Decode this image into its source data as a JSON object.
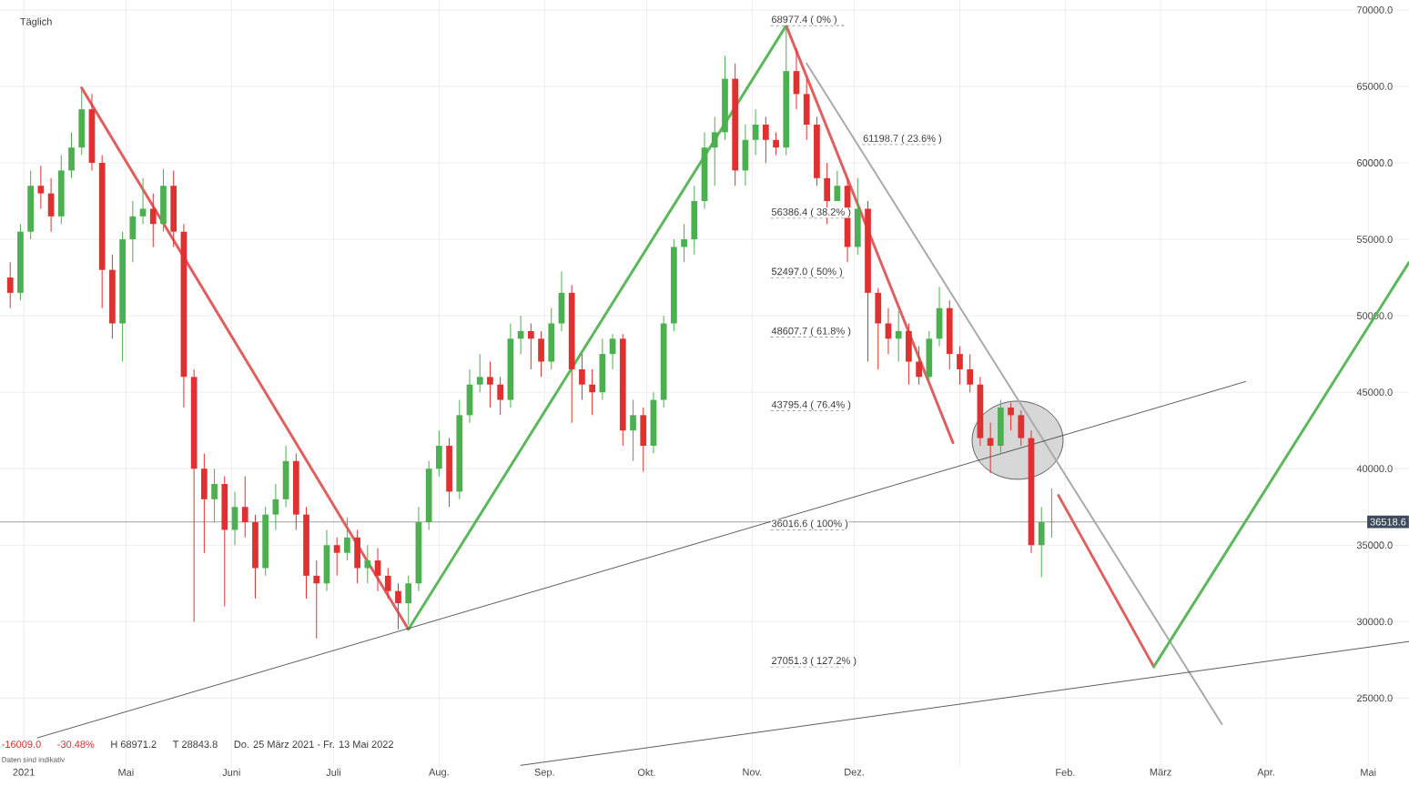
{
  "chart_data": {
    "type": "candlestick",
    "title": "Täglich",
    "x": [
      "2021-03-28",
      "2021-03-31",
      "2021-04-03",
      "2021-04-06",
      "2021-04-09",
      "2021-04-12",
      "2021-04-15",
      "2021-04-18",
      "2021-04-21",
      "2021-04-24",
      "2021-04-27",
      "2021-04-30",
      "2021-05-03",
      "2021-05-06",
      "2021-05-09",
      "2021-05-12",
      "2021-05-15",
      "2021-05-18",
      "2021-05-21",
      "2021-05-24",
      "2021-05-27",
      "2021-05-30",
      "2021-06-02",
      "2021-06-05",
      "2021-06-08",
      "2021-06-11",
      "2021-06-14",
      "2021-06-17",
      "2021-06-20",
      "2021-06-23",
      "2021-06-26",
      "2021-06-29",
      "2021-07-02",
      "2021-07-05",
      "2021-07-08",
      "2021-07-11",
      "2021-07-14",
      "2021-07-17",
      "2021-07-20",
      "2021-07-23",
      "2021-07-26",
      "2021-07-29",
      "2021-08-01",
      "2021-08-04",
      "2021-08-07",
      "2021-08-10",
      "2021-08-13",
      "2021-08-16",
      "2021-08-19",
      "2021-08-22",
      "2021-08-25",
      "2021-08-28",
      "2021-08-31",
      "2021-09-03",
      "2021-09-06",
      "2021-09-09",
      "2021-09-12",
      "2021-09-15",
      "2021-09-18",
      "2021-09-21",
      "2021-09-24",
      "2021-09-27",
      "2021-09-30",
      "2021-10-03",
      "2021-10-06",
      "2021-10-09",
      "2021-10-12",
      "2021-10-15",
      "2021-10-18",
      "2021-10-21",
      "2021-10-24",
      "2021-10-27",
      "2021-10-30",
      "2021-11-02",
      "2021-11-05",
      "2021-11-08",
      "2021-11-11",
      "2021-11-14",
      "2021-11-17",
      "2021-11-20",
      "2021-11-23",
      "2021-11-26",
      "2021-11-29",
      "2021-12-02",
      "2021-12-05",
      "2021-12-08",
      "2021-12-11",
      "2021-12-14",
      "2021-12-17",
      "2021-12-20",
      "2021-12-23",
      "2021-12-26",
      "2021-12-29",
      "2022-01-01",
      "2022-01-04",
      "2022-01-07",
      "2022-01-10",
      "2022-01-13",
      "2022-01-16",
      "2022-01-19",
      "2022-01-22",
      "2022-01-25",
      "2022-01-28"
    ],
    "ohlc": [
      [
        52500,
        53500,
        50500,
        51500
      ],
      [
        51500,
        56000,
        51000,
        55500
      ],
      [
        55500,
        59500,
        55000,
        58500
      ],
      [
        58500,
        59800,
        57000,
        58000
      ],
      [
        58000,
        59000,
        55500,
        56500
      ],
      [
        56500,
        60500,
        56000,
        59500
      ],
      [
        59500,
        62000,
        59000,
        61000
      ],
      [
        61000,
        64800,
        60500,
        63500
      ],
      [
        63500,
        64500,
        59500,
        60000
      ],
      [
        60000,
        60500,
        50500,
        53000
      ],
      [
        53000,
        54000,
        48500,
        49500
      ],
      [
        49500,
        55500,
        47000,
        55000
      ],
      [
        55000,
        57500,
        53500,
        56500
      ],
      [
        56500,
        59000,
        56000,
        57000
      ],
      [
        57000,
        58000,
        54500,
        56000
      ],
      [
        56000,
        59600,
        55500,
        58500
      ],
      [
        58500,
        59500,
        54500,
        55500
      ],
      [
        55500,
        56000,
        44000,
        46000
      ],
      [
        46000,
        46500,
        30000,
        40000
      ],
      [
        40000,
        41000,
        34500,
        38000
      ],
      [
        38000,
        40000,
        36500,
        39000
      ],
      [
        39000,
        39500,
        31000,
        36000
      ],
      [
        36000,
        38500,
        35000,
        37500
      ],
      [
        37500,
        39500,
        35500,
        36500
      ],
      [
        36500,
        37000,
        31500,
        33500
      ],
      [
        33500,
        37500,
        33000,
        37000
      ],
      [
        37000,
        39000,
        36000,
        38000
      ],
      [
        38000,
        41500,
        37500,
        40500
      ],
      [
        40500,
        41000,
        36000,
        37000
      ],
      [
        37000,
        37500,
        31500,
        33000
      ],
      [
        33000,
        34000,
        28900,
        32500
      ],
      [
        32500,
        36000,
        32000,
        35000
      ],
      [
        35000,
        35500,
        33000,
        34500
      ],
      [
        34500,
        36800,
        34000,
        35500
      ],
      [
        35500,
        36000,
        32500,
        33500
      ],
      [
        33500,
        35000,
        32500,
        34000
      ],
      [
        34000,
        34800,
        32000,
        33000
      ],
      [
        33000,
        33500,
        31500,
        32000
      ],
      [
        32000,
        32500,
        29500,
        31200
      ],
      [
        31200,
        33000,
        29800,
        32500
      ],
      [
        32500,
        37500,
        32000,
        36500
      ],
      [
        36500,
        40500,
        36000,
        40000
      ],
      [
        40000,
        42500,
        39500,
        41500
      ],
      [
        41500,
        42000,
        37500,
        38500
      ],
      [
        38500,
        44500,
        38000,
        43500
      ],
      [
        43500,
        46500,
        43000,
        45500
      ],
      [
        45500,
        47500,
        45000,
        46000
      ],
      [
        46000,
        47000,
        44000,
        45500
      ],
      [
        45500,
        46000,
        43500,
        44500
      ],
      [
        44500,
        49500,
        44000,
        48500
      ],
      [
        48500,
        50000,
        47500,
        49000
      ],
      [
        49000,
        49500,
        46500,
        48500
      ],
      [
        48500,
        49000,
        46000,
        47000
      ],
      [
        47000,
        50500,
        46500,
        49500
      ],
      [
        49500,
        52900,
        49000,
        51500
      ],
      [
        51500,
        52000,
        43000,
        46500
      ],
      [
        46500,
        47500,
        44500,
        45500
      ],
      [
        45500,
        46500,
        43500,
        45000
      ],
      [
        45000,
        48500,
        44500,
        47500
      ],
      [
        47500,
        48800,
        46500,
        48500
      ],
      [
        48500,
        48800,
        41500,
        42500
      ],
      [
        42500,
        44500,
        40500,
        43500
      ],
      [
        43500,
        44000,
        39800,
        41500
      ],
      [
        41500,
        45000,
        41000,
        44500
      ],
      [
        44500,
        50000,
        44000,
        49500
      ],
      [
        49500,
        55000,
        49000,
        54500
      ],
      [
        54500,
        56000,
        53500,
        55000
      ],
      [
        55000,
        58500,
        54000,
        57500
      ],
      [
        57500,
        62000,
        57000,
        61000
      ],
      [
        61000,
        63000,
        58500,
        62000
      ],
      [
        62000,
        67000,
        61500,
        65500
      ],
      [
        65500,
        66500,
        58500,
        59500
      ],
      [
        59500,
        62500,
        58500,
        61500
      ],
      [
        61500,
        63500,
        60500,
        62500
      ],
      [
        62500,
        63000,
        60000,
        61500
      ],
      [
        61500,
        62000,
        60500,
        61000
      ],
      [
        61000,
        68971.2,
        60500,
        66000
      ],
      [
        66000,
        67500,
        63500,
        64500
      ],
      [
        64500,
        65500,
        61500,
        62500
      ],
      [
        62500,
        63000,
        58500,
        59000
      ],
      [
        59000,
        60000,
        56000,
        57500
      ],
      [
        57500,
        59500,
        57500,
        58500
      ],
      [
        58500,
        59000,
        53500,
        54500
      ],
      [
        54500,
        59000,
        54000,
        57000
      ],
      [
        57000,
        57500,
        47000,
        51500
      ],
      [
        51500,
        51800,
        46500,
        49500
      ],
      [
        49500,
        50500,
        47500,
        48500
      ],
      [
        48500,
        50300,
        47000,
        49000
      ],
      [
        49000,
        49500,
        45500,
        47000
      ],
      [
        47000,
        48000,
        45500,
        46000
      ],
      [
        46000,
        49000,
        45800,
        48500
      ],
      [
        48500,
        51900,
        48000,
        50500
      ],
      [
        50500,
        51000,
        46500,
        47500
      ],
      [
        47500,
        48000,
        45500,
        46500
      ],
      [
        46500,
        47500,
        45000,
        45500
      ],
      [
        45500,
        46000,
        41500,
        42000
      ],
      [
        42000,
        43000,
        39700,
        41500
      ],
      [
        41500,
        44500,
        41000,
        44000
      ],
      [
        44000,
        44300,
        42500,
        43500
      ],
      [
        43500,
        43800,
        41500,
        42000
      ],
      [
        42000,
        42500,
        34500,
        35000
      ],
      [
        35000,
        37500,
        32900,
        36500
      ],
      [
        36500,
        38700,
        35500,
        36518.6
      ]
    ],
    "colors": [
      "#e03131",
      "#4caf50",
      "#4caf50",
      "#e03131",
      "#e03131",
      "#4caf50",
      "#4caf50",
      "#4caf50",
      "#e03131",
      "#e03131",
      "#e03131",
      "#4caf50",
      "#4caf50",
      "#4caf50",
      "#e03131",
      "#4caf50",
      "#e03131",
      "#e03131",
      "#e03131",
      "#e03131",
      "#4caf50",
      "#e03131",
      "#4caf50",
      "#e03131",
      "#e03131",
      "#4caf50",
      "#4caf50",
      "#4caf50",
      "#e03131",
      "#e03131",
      "#e03131",
      "#4caf50",
      "#e03131",
      "#4caf50",
      "#e03131",
      "#4caf50",
      "#e03131",
      "#e03131",
      "#e03131",
      "#4caf50",
      "#4caf50",
      "#4caf50",
      "#4caf50",
      "#e03131",
      "#4caf50",
      "#4caf50",
      "#4caf50",
      "#e03131",
      "#e03131",
      "#4caf50",
      "#4caf50",
      "#e03131",
      "#e03131",
      "#4caf50",
      "#4caf50",
      "#e03131",
      "#e03131",
      "#e03131",
      "#4caf50",
      "#4caf50",
      "#e03131",
      "#4caf50",
      "#e03131",
      "#4caf50",
      "#4caf50",
      "#4caf50",
      "#4caf50",
      "#4caf50",
      "#4caf50",
      "#4caf50",
      "#4caf50",
      "#e03131",
      "#4caf50",
      "#4caf50",
      "#e03131",
      "#e03131",
      "#4caf50",
      "#e03131",
      "#e03131",
      "#e03131",
      "#e03131",
      "#4caf50",
      "#e03131",
      "#4caf50",
      "#e03131",
      "#e03131",
      "#e03131",
      "#4caf50",
      "#e03131",
      "#e03131",
      "#4caf50",
      "#4caf50",
      "#e03131",
      "#e03131",
      "#e03131",
      "#e03131",
      "#e03131",
      "#4caf50",
      "#e03131",
      "#e03131",
      "#e03131",
      "#4caf50",
      "#4caf50"
    ],
    "series": [
      {
        "type": "line",
        "color": "#e06060",
        "x": [
          "2021-04-18",
          "2021-07-23"
        ],
        "values": [
          64900,
          29500
        ]
      },
      {
        "type": "line",
        "color": "#5cb85c",
        "x": [
          "2021-07-23",
          "2021-11-11"
        ],
        "values": [
          29500,
          68977.4
        ]
      },
      {
        "type": "line",
        "color": "#e06060",
        "x": [
          "2021-11-11",
          "2021-12-30"
        ],
        "values": [
          68977.4,
          41700
        ]
      },
      {
        "type": "line",
        "color": "#aaaaaa",
        "x": [
          "2021-11-17",
          "2022-03-19"
        ],
        "values": [
          66500,
          23300
        ]
      },
      {
        "type": "line",
        "color": "#333333",
        "x": [
          "2021-04-05",
          "2022-03-26"
        ],
        "values": [
          22400,
          45700
        ]
      },
      {
        "type": "line",
        "color": "#333333",
        "x": [
          "2021-08-25",
          "2022-05-13"
        ],
        "values": [
          20600,
          28700
        ]
      },
      {
        "type": "line",
        "color": "#e06060",
        "x": [
          "2022-01-30",
          "2022-02-27"
        ],
        "values": [
          38250,
          27050
        ]
      },
      {
        "type": "line",
        "color": "#5cb85c",
        "x": [
          "2022-02-27",
          "2022-05-13"
        ],
        "values": [
          27050,
          53500
        ]
      }
    ],
    "annotations": [
      "68977.4 ( 0% )",
      "61198.7 ( 23.6% )",
      "56386.4 ( 38.2% )",
      "52497.0 ( 50% )",
      "48607.7 ( 61.8% )",
      "43795.4 ( 76.4% )",
      "36016.6 ( 100% )",
      "27051.3 ( 127.2% )",
      "-16009.0",
      "-30.48%",
      "H 68971.2",
      "T 28843.8",
      "Do. 25 März 2021 - Fr. 13 Mai 2022",
      "Daten sind indikativ"
    ],
    "ref_lines": [
      {
        "axis": "y",
        "value": 36518.6,
        "label": "36518.6",
        "color": "#888888"
      }
    ],
    "xlim": [
      "2021-03-25",
      "2022-05-13"
    ],
    "xticks": [
      {
        "value": "2021-04-01",
        "label": "2021"
      },
      {
        "value": "2021-05-01",
        "label": "Mai"
      },
      {
        "value": "2021-06-01",
        "label": "Juni"
      },
      {
        "value": "2021-07-01",
        "label": "Juli"
      },
      {
        "value": "2021-08-01",
        "label": "Aug."
      },
      {
        "value": "2021-09-01",
        "label": "Sep."
      },
      {
        "value": "2021-10-01",
        "label": "Okt."
      },
      {
        "value": "2021-11-01",
        "label": "Nov."
      },
      {
        "value": "2021-12-01",
        "label": "Dez."
      },
      {
        "value": "2022-01-01",
        "label": null
      },
      {
        "value": "2022-02-01",
        "label": "Feb."
      },
      {
        "value": "2022-03-01",
        "label": "März"
      },
      {
        "value": "2022-04-01",
        "label": "Apr."
      },
      {
        "value": "2022-05-01",
        "label": "Mai"
      }
    ],
    "ylim": [
      20500,
      70650
    ],
    "yticks": [
      {
        "value": 25000,
        "label": "25000.0"
      },
      {
        "value": 30000,
        "label": "30000.0"
      },
      {
        "value": 35000,
        "label": "35000.0"
      },
      {
        "value": 40000,
        "label": "40000.0"
      },
      {
        "value": 45000,
        "label": "45000.0"
      },
      {
        "value": 50000,
        "label": "50000.0"
      },
      {
        "value": 55000,
        "label": "55000.0"
      },
      {
        "value": 60000,
        "label": "60000.0"
      },
      {
        "value": 65000,
        "label": "65000.0"
      },
      {
        "value": 70000,
        "label": "70000.0"
      }
    ],
    "grid": true
  }
}
